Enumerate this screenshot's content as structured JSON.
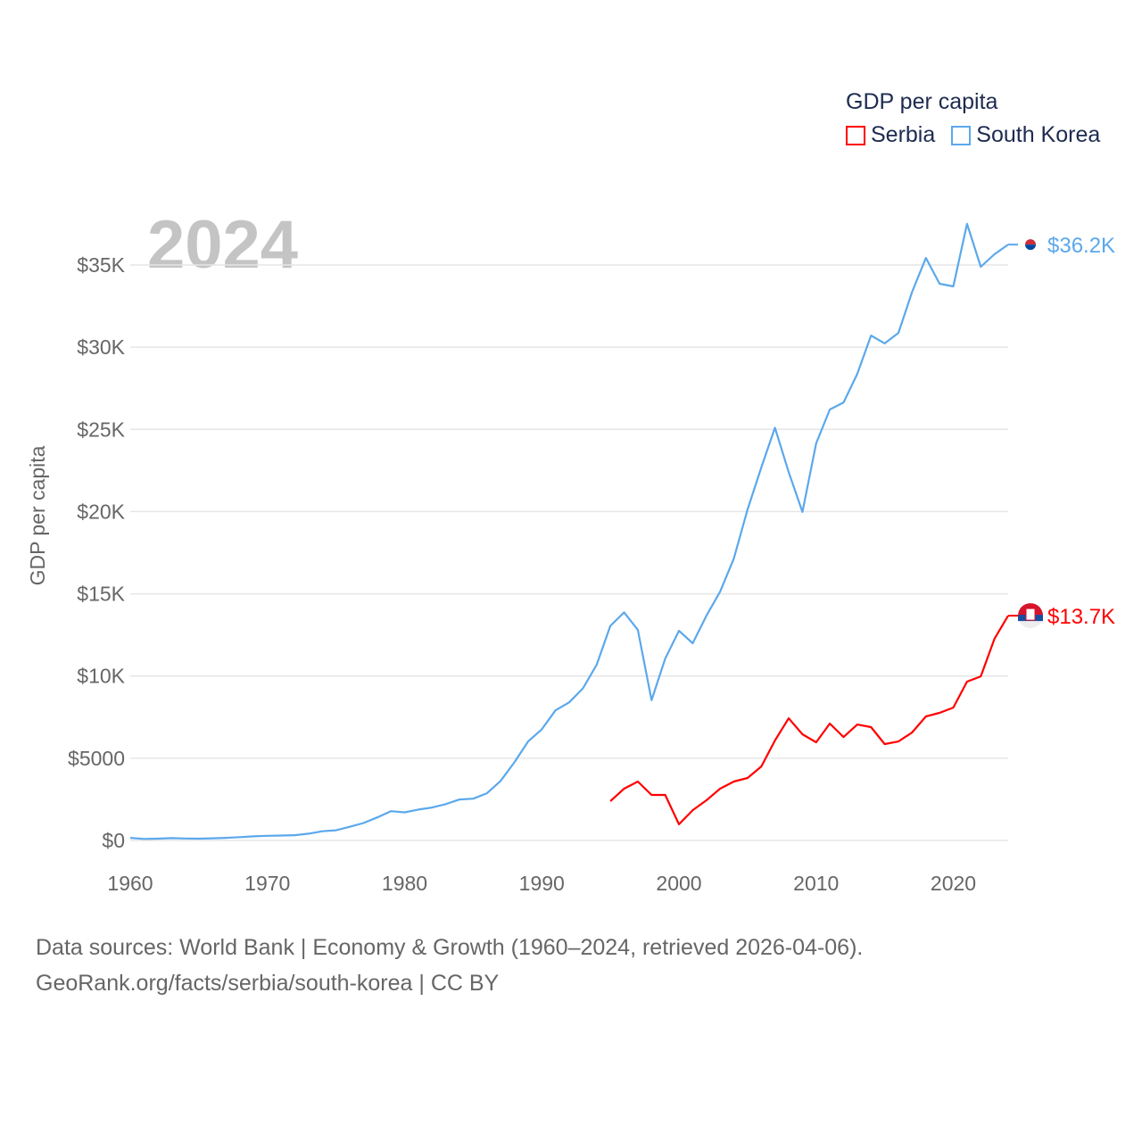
{
  "chart_data": {
    "type": "line",
    "title": "GDP per capita",
    "year_label": "2024",
    "ylabel": "GDP per capita",
    "xlabel": "",
    "xlim": [
      1960,
      2024
    ],
    "ylim": [
      0,
      37500
    ],
    "x_ticks": [
      1960,
      1970,
      1980,
      1990,
      2000,
      2010,
      2020
    ],
    "x_tick_labels": [
      "1960",
      "1970",
      "1980",
      "1990",
      "2000",
      "2010",
      "2020"
    ],
    "y_ticks": [
      0,
      5000,
      10000,
      15000,
      20000,
      25000,
      30000,
      35000
    ],
    "y_tick_labels": [
      "$0",
      "$5000",
      "$10K",
      "$15K",
      "$20K",
      "$25K",
      "$30K",
      "$35K"
    ],
    "grid": true,
    "legend_placement": "top-right",
    "series": [
      {
        "name": "Serbia",
        "color": "#ff0000",
        "end_label": "$13.7K",
        "flag": "serbia-flag",
        "x_start": 1995,
        "values": [
          2390,
          3150,
          3580,
          2770,
          2770,
          980,
          1840,
          2440,
          3150,
          3580,
          3800,
          4500,
          6080,
          7430,
          6460,
          5970,
          7110,
          6290,
          7050,
          6890,
          5860,
          6020,
          6570,
          7540,
          7760,
          8080,
          9660,
          9980,
          12260,
          13670
        ]
      },
      {
        "name": "South Korea",
        "color": "#5ba8ec",
        "end_label": "$36.2K",
        "flag": "south-korea-flag",
        "x_start": 1960,
        "values": [
          160,
          90,
          110,
          140,
          120,
          110,
          130,
          160,
          200,
          250,
          280,
          300,
          320,
          410,
          560,
          620,
          830,
          1060,
          1400,
          1780,
          1710,
          1880,
          2000,
          2210,
          2490,
          2540,
          2870,
          3620,
          4750,
          6020,
          6760,
          7910,
          8400,
          9250,
          10690,
          13050,
          13870,
          12810,
          8530,
          11060,
          12750,
          11990,
          13670,
          15130,
          17140,
          20130,
          22680,
          25100,
          22400,
          19980,
          24150,
          26210,
          26640,
          28380,
          30710,
          30230,
          30870,
          33370,
          35430,
          33860,
          33700,
          37500,
          34890,
          35650,
          36240
        ]
      }
    ]
  },
  "footer": {
    "line1": "Data sources: World Bank | Economy & Growth (1960–2024, retrieved 2026-04-06).",
    "line2": "GeoRank.org/facts/serbia/south-korea | CC BY"
  }
}
